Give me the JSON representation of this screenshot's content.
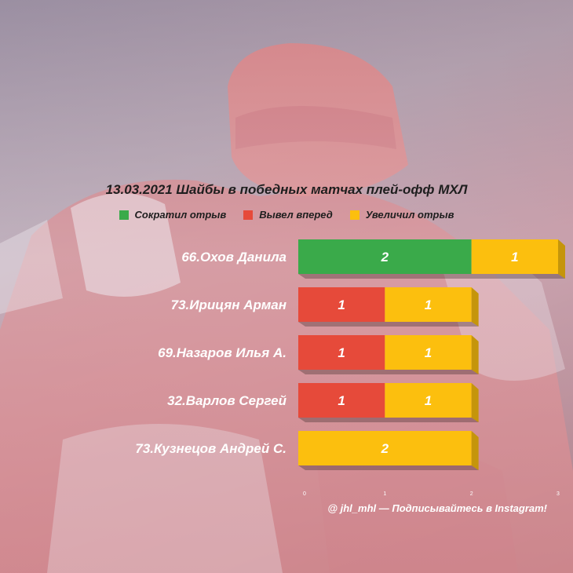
{
  "chart_data": {
    "type": "bar",
    "orientation": "horizontal",
    "stacked": true,
    "title": "13.03.2021 Шайбы в победных матчах плей-офф МХЛ",
    "categories": [
      "66.Охов Данила",
      "73.Ирицян Арман",
      "69.Назаров Илья А.",
      "32.Варлов Сергей",
      "73.Кузнецов Андрей С."
    ],
    "series": [
      {
        "name": "Сократил отрыв",
        "color": "#3aaa4a",
        "values": [
          2,
          0,
          0,
          0,
          0
        ]
      },
      {
        "name": "Вывел вперед",
        "color": "#e64a3a",
        "values": [
          0,
          1,
          1,
          1,
          0
        ]
      },
      {
        "name": "Увеличил отрыв",
        "color": "#fcbf0e",
        "values": [
          1,
          1,
          1,
          1,
          2
        ]
      }
    ],
    "xlim": [
      0,
      3
    ],
    "xticks": [
      "0",
      "1",
      "2",
      "3"
    ],
    "grid": false,
    "legend_position": "top"
  },
  "footer": "@ jhl_mhl — Подписывайтесь в Instagram!"
}
